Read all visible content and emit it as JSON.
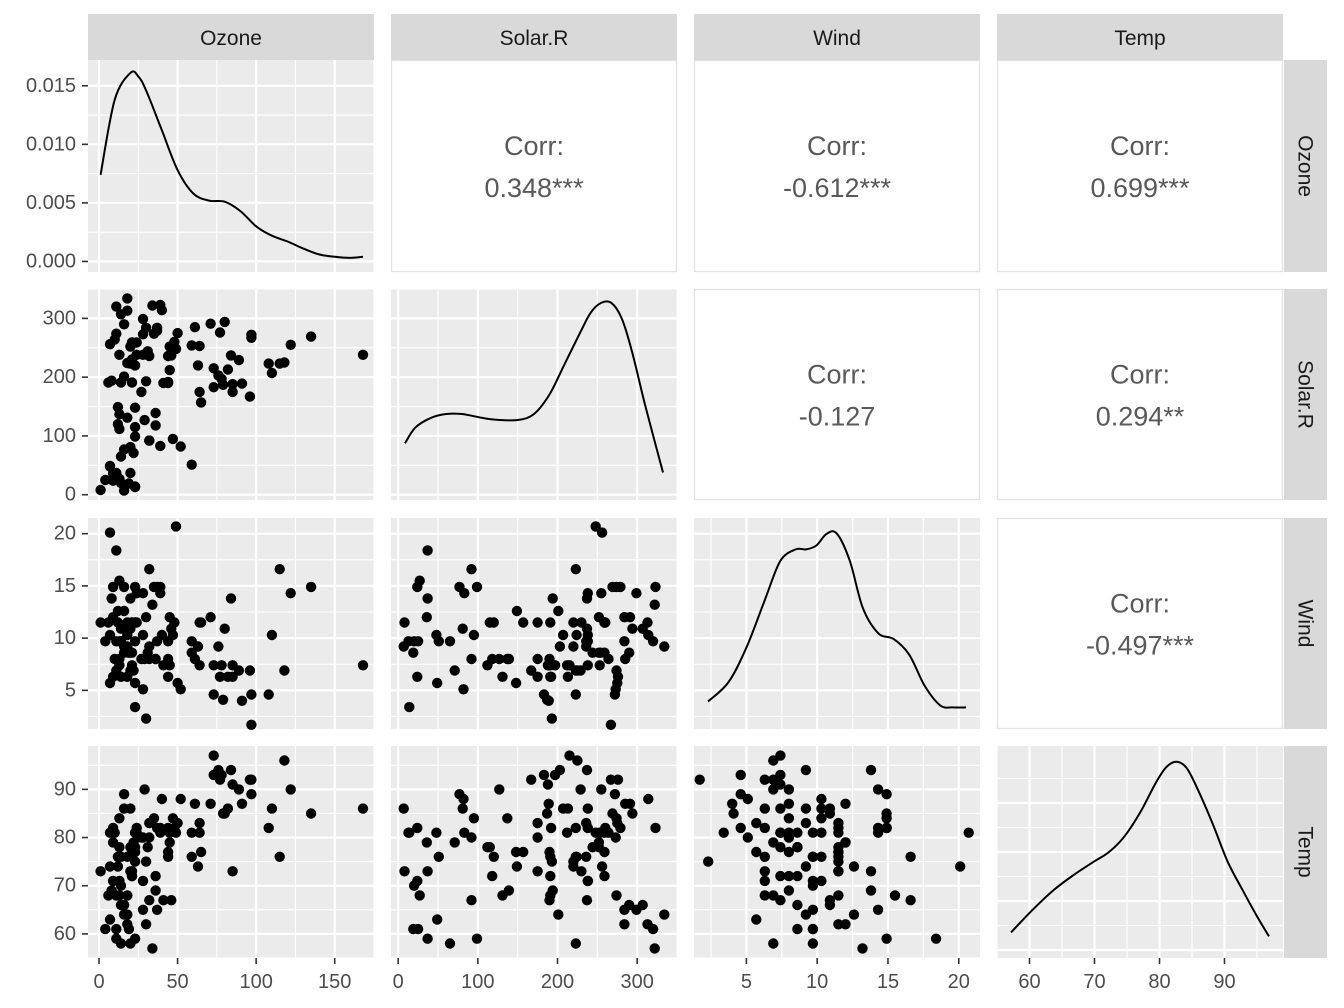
{
  "chart_data": {
    "type": "scatter",
    "variables": [
      "Ozone",
      "Solar.R",
      "Wind",
      "Temp"
    ],
    "axes": {
      "Ozone": {
        "lim": [
          -7,
          175
        ],
        "ticks": [
          0,
          50,
          100,
          150
        ]
      },
      "Solar.R": {
        "lim": [
          -9,
          350
        ],
        "ticks": [
          0,
          100,
          200,
          300
        ]
      },
      "Wind": {
        "lim": [
          1.3,
          21.5
        ],
        "ticks": [
          5,
          10,
          15,
          20
        ]
      },
      "Temp": {
        "lim": [
          55,
          99
        ],
        "ticks": [
          60,
          70,
          80,
          90
        ]
      }
    },
    "density_ylim": [
      -0.0009,
      0.0172
    ],
    "density_ticks": [
      "0.000",
      "0.005",
      "0.010",
      "0.015"
    ],
    "densities": {
      "Ozone": {
        "x": [
          1,
          10,
          20,
          25,
          30,
          40,
          50,
          60,
          70,
          80,
          90,
          100,
          110,
          120,
          130,
          140,
          150,
          160,
          168
        ],
        "y": [
          0.0074,
          0.0138,
          0.0161,
          0.0158,
          0.0146,
          0.0112,
          0.0078,
          0.0058,
          0.0052,
          0.0051,
          0.0043,
          0.003,
          0.0022,
          0.0017,
          0.0011,
          0.0006,
          0.0004,
          0.0003,
          0.0004
        ]
      },
      "Solar.R": {
        "rel": [
          0,
          0.04,
          0.1,
          0.16,
          0.22,
          0.3,
          0.36,
          0.44,
          0.5,
          0.56,
          0.62,
          0.68,
          0.72,
          0.76,
          0.8,
          0.84,
          0.88,
          0.93,
          1
        ],
        "rely": [
          0.25,
          0.33,
          0.38,
          0.4,
          0.4,
          0.38,
          0.37,
          0.37,
          0.4,
          0.5,
          0.66,
          0.82,
          0.92,
          0.97,
          0.97,
          0.89,
          0.72,
          0.45,
          0.1
        ]
      },
      "Wind": {
        "rel": [
          0,
          0.08,
          0.15,
          0.22,
          0.28,
          0.34,
          0.38,
          0.42,
          0.46,
          0.5,
          0.55,
          0.6,
          0.66,
          0.72,
          0.78,
          0.84,
          0.9,
          0.95,
          1
        ],
        "rely": [
          0.1,
          0.2,
          0.38,
          0.62,
          0.82,
          0.88,
          0.88,
          0.9,
          0.96,
          0.96,
          0.82,
          0.58,
          0.45,
          0.42,
          0.34,
          0.18,
          0.08,
          0.07,
          0.07
        ]
      },
      "Temp": {
        "rel": [
          0,
          0.08,
          0.16,
          0.24,
          0.32,
          0.38,
          0.44,
          0.5,
          0.56,
          0.6,
          0.64,
          0.68,
          0.72,
          0.78,
          0.84,
          0.9,
          0.95,
          1
        ],
        "rely": [
          0.09,
          0.2,
          0.3,
          0.38,
          0.45,
          0.5,
          0.58,
          0.7,
          0.85,
          0.93,
          0.96,
          0.93,
          0.83,
          0.65,
          0.45,
          0.3,
          0.18,
          0.07
        ]
      }
    },
    "correlations": [
      {
        "row": "Ozone",
        "col": "Solar.R",
        "label": "Corr:",
        "value": "0.348***"
      },
      {
        "row": "Ozone",
        "col": "Wind",
        "label": "Corr:",
        "value": "-0.612***"
      },
      {
        "row": "Ozone",
        "col": "Temp",
        "label": "Corr:",
        "value": "0.699***"
      },
      {
        "row": "Solar.R",
        "col": "Wind",
        "label": "Corr:",
        "value": "-0.127"
      },
      {
        "row": "Solar.R",
        "col": "Temp",
        "label": "Corr:",
        "value": "0.294**"
      },
      {
        "row": "Wind",
        "col": "Temp",
        "label": "Corr:",
        "value": "-0.497***"
      }
    ],
    "observations": {
      "Ozone": [
        41,
        36,
        12,
        18,
        28,
        23,
        19,
        8,
        7,
        16,
        11,
        14,
        18,
        14,
        34,
        6,
        30,
        11,
        1,
        11,
        4,
        32,
        23,
        45,
        115,
        37,
        29,
        71,
        39,
        23,
        21,
        37,
        20,
        12,
        13,
        135,
        49,
        32,
        64,
        40,
        77,
        97,
        97,
        85,
        10,
        27,
        7,
        48,
        35,
        61,
        79,
        63,
        16,
        80,
        108,
        20,
        52,
        82,
        50,
        64,
        59,
        39,
        9,
        16,
        122,
        89,
        110,
        44,
        28,
        65,
        22,
        59,
        23,
        31,
        44,
        21,
        9,
        45,
        168,
        73,
        76,
        118,
        84,
        85,
        96,
        78,
        73,
        91,
        47,
        32,
        20,
        23,
        21,
        24,
        44,
        21,
        28,
        9,
        13,
        46,
        18,
        13,
        24,
        16,
        13,
        23,
        36,
        7,
        14,
        30,
        14,
        18,
        20
      ],
      "Solar.R": [
        190,
        118,
        149,
        313,
        299,
        99,
        19,
        194,
        256,
        290,
        274,
        65,
        334,
        307,
        322,
        191,
        284,
        37,
        8,
        320,
        25,
        92,
        13,
        252,
        223,
        279,
        127,
        291,
        323,
        148,
        191,
        284,
        37,
        120,
        137,
        269,
        248,
        236,
        175,
        314,
        276,
        267,
        272,
        175,
        264,
        175,
        48,
        260,
        274,
        285,
        187,
        220,
        7,
        294,
        223,
        81,
        82,
        213,
        275,
        253,
        254,
        83,
        24,
        77,
        255,
        229,
        207,
        192,
        273,
        157,
        71,
        51,
        115,
        244,
        190,
        259,
        36,
        212,
        238,
        215,
        203,
        225,
        237,
        188,
        167,
        197,
        183,
        189,
        95,
        92,
        252,
        220,
        230,
        259,
        236,
        259,
        238,
        24,
        112,
        237,
        224,
        27,
        238,
        201,
        238,
        14,
        139,
        49,
        20,
        193,
        191,
        131,
        223
      ],
      "Wind": [
        7.4,
        8.0,
        12.6,
        11.5,
        14.3,
        14.9,
        8.6,
        13.8,
        20.1,
        8.6,
        6.9,
        9.7,
        9.2,
        10.9,
        13.2,
        11.5,
        12.0,
        18.4,
        11.5,
        9.7,
        9.7,
        16.6,
        9.7,
        12.0,
        16.6,
        14.9,
        8.0,
        12.0,
        14.9,
        5.7,
        7.4,
        9.7,
        13.8,
        11.5,
        8.0,
        14.9,
        20.7,
        9.2,
        11.5,
        10.3,
        6.3,
        1.7,
        4.6,
        6.3,
        8.0,
        8.0,
        10.3,
        11.5,
        14.9,
        8.0,
        4.1,
        9.2,
        9.2,
        10.9,
        4.6,
        10.9,
        5.1,
        6.3,
        5.7,
        7.4,
        8.6,
        14.3,
        14.9,
        14.9,
        14.3,
        6.9,
        10.3,
        6.3,
        5.1,
        11.5,
        6.9,
        9.7,
        11.5,
        8.6,
        8.0,
        8.6,
        12.0,
        7.4,
        7.4,
        7.4,
        9.2,
        6.9,
        13.8,
        7.4,
        6.9,
        7.4,
        4.6,
        4.0,
        10.3,
        8.0,
        8.6,
        11.5,
        11.5,
        11.5,
        9.7,
        11.5,
        10.3,
        6.3,
        7.4,
        10.9,
        10.3,
        15.5,
        14.3,
        12.6,
        9.7,
        3.4,
        8.0,
        5.7,
        9.7,
        2.3,
        6.3,
        6.3,
        6.9
      ],
      "Temp": [
        67,
        72,
        74,
        62,
        65,
        59,
        61,
        69,
        74,
        66,
        68,
        58,
        64,
        66,
        57,
        68,
        62,
        59,
        73,
        61,
        61,
        67,
        81,
        79,
        76,
        82,
        90,
        87,
        82,
        77,
        72,
        65,
        73,
        76,
        84,
        85,
        81,
        83,
        83,
        88,
        92,
        92,
        89,
        73,
        81,
        80,
        81,
        82,
        84,
        87,
        85,
        74,
        86,
        85,
        82,
        86,
        88,
        86,
        83,
        81,
        81,
        81,
        82,
        89,
        90,
        90,
        86,
        82,
        80,
        77,
        79,
        76,
        78,
        78,
        77,
        72,
        79,
        81,
        86,
        97,
        94,
        96,
        94,
        91,
        92,
        93,
        93,
        87,
        84,
        80,
        78,
        75,
        73,
        81,
        76,
        77,
        71,
        71,
        78,
        67,
        76,
        68,
        82,
        64,
        71,
        81,
        69,
        63,
        70,
        75,
        76,
        68,
        58
      ]
    }
  }
}
